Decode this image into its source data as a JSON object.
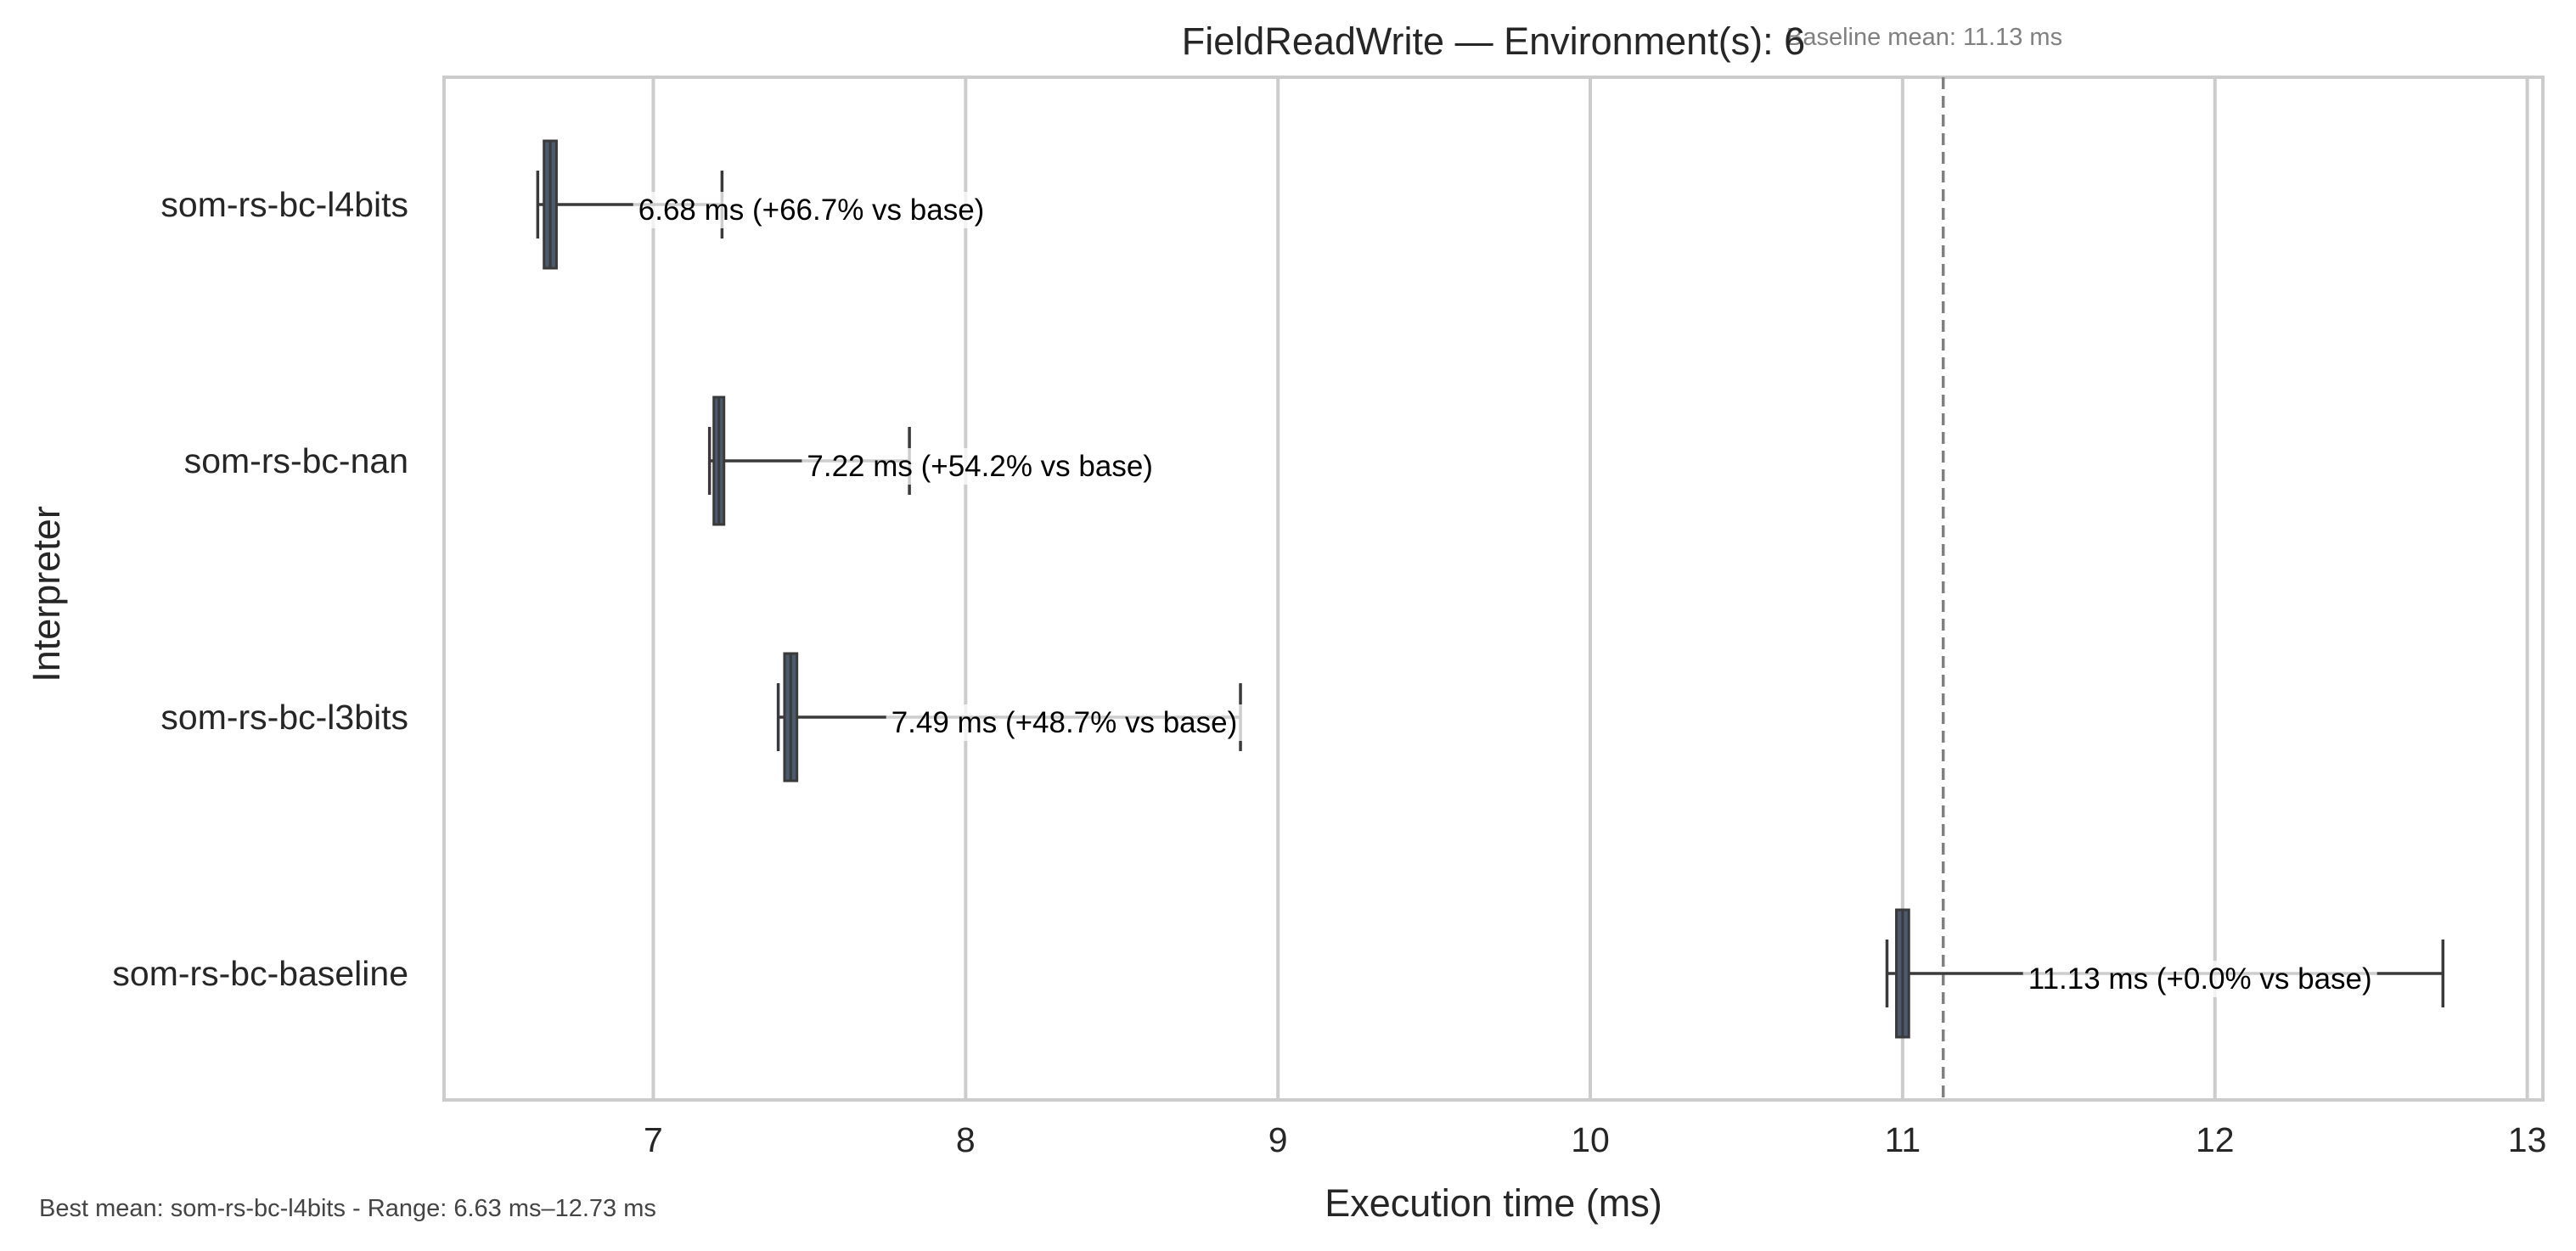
{
  "chart_data": {
    "type": "boxplot",
    "orientation": "horizontal",
    "title": "FieldReadWrite — Environment(s): 6",
    "xlabel": "Execution time (ms)",
    "ylabel": "Interpreter",
    "xlim": [
      6.33,
      13.05
    ],
    "xticks": [
      7,
      8,
      9,
      10,
      11,
      12,
      13
    ],
    "grid": "vertical",
    "categories": [
      "som-rs-bc-l4bits",
      "som-rs-bc-nan",
      "som-rs-bc-l3bits",
      "som-rs-bc-baseline"
    ],
    "boxes": [
      {
        "name": "som-rs-bc-l4bits",
        "whislo": 6.63,
        "q1": 6.65,
        "med": 6.67,
        "q3": 6.69,
        "whishi": 7.22,
        "mean": 6.68,
        "label": "6.68 ms  (+66.7% vs base)"
      },
      {
        "name": "som-rs-bc-nan",
        "whislo": 7.18,
        "q1": 7.2,
        "med": 7.21,
        "q3": 7.22,
        "whishi": 7.82,
        "mean": 7.22,
        "label": "7.22 ms  (+54.2% vs base)"
      },
      {
        "name": "som-rs-bc-l3bits",
        "whislo": 7.4,
        "q1": 7.42,
        "med": 7.44,
        "q3": 7.46,
        "whishi": 8.88,
        "mean": 7.49,
        "label": "7.49 ms  (+48.7% vs base)"
      },
      {
        "name": "som-rs-bc-baseline",
        "whislo": 10.95,
        "q1": 10.98,
        "med": 11.0,
        "q3": 11.02,
        "whishi": 12.73,
        "mean": 11.13,
        "label": "11.13 ms  (+0.0% vs base)"
      }
    ],
    "baseline": {
      "value": 11.13,
      "label": "Baseline mean: 11.13 ms"
    },
    "box_color": "#4c5a6e",
    "line_color": "#3a3a3a",
    "grid_color": "#cccccc"
  },
  "footnote": "Best mean: som-rs-bc-l4bits - Range: 6.63 ms–12.73 ms"
}
